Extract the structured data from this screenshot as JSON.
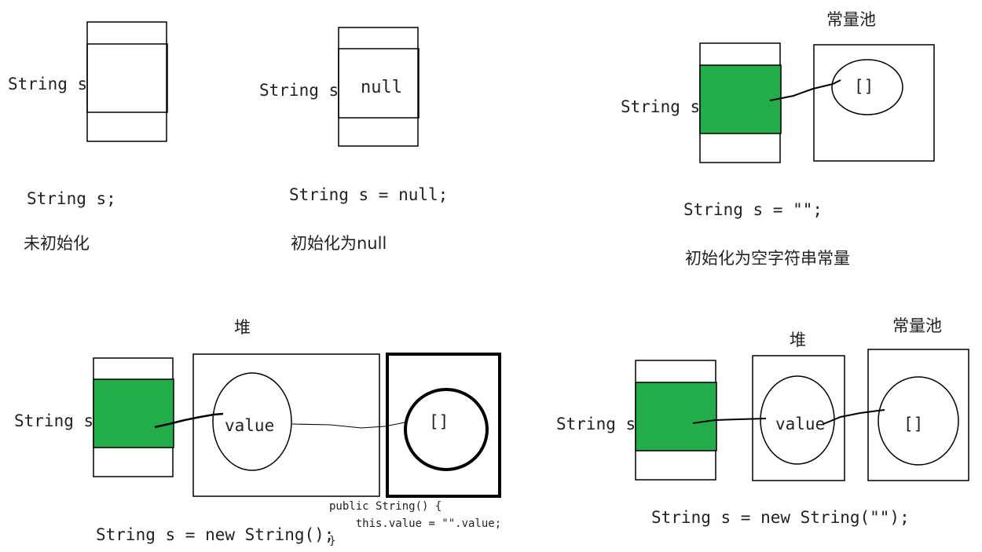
{
  "panel_uninit": {
    "var_label": "String s",
    "code": "String s;",
    "caption": "未初始化"
  },
  "panel_null": {
    "var_label": "String s",
    "cell_value": "null",
    "code": "String s = null;",
    "caption": "初始化为null"
  },
  "panel_empty_literal": {
    "var_label": "String s",
    "pool_title": "常量池",
    "pool_value": "[]",
    "code": "String s = \"\";",
    "caption": "初始化为空字符串常量"
  },
  "panel_new_string": {
    "var_label": "String s",
    "heap_title": "堆",
    "value_label": "value",
    "array_value": "[]",
    "code": "String s = new String();",
    "constructor_code": [
      "public String() {",
      "    this.value = \"\".value;",
      "}"
    ]
  },
  "panel_new_string_literal": {
    "var_label": "String s",
    "heap_title": "堆",
    "pool_title": "常量池",
    "value_label": "value",
    "pool_value": "[]",
    "code": "String s = new String(\"\");"
  },
  "colors": {
    "reference_fill": "#22ad4a",
    "stroke": "#000000",
    "text": "#222222"
  }
}
